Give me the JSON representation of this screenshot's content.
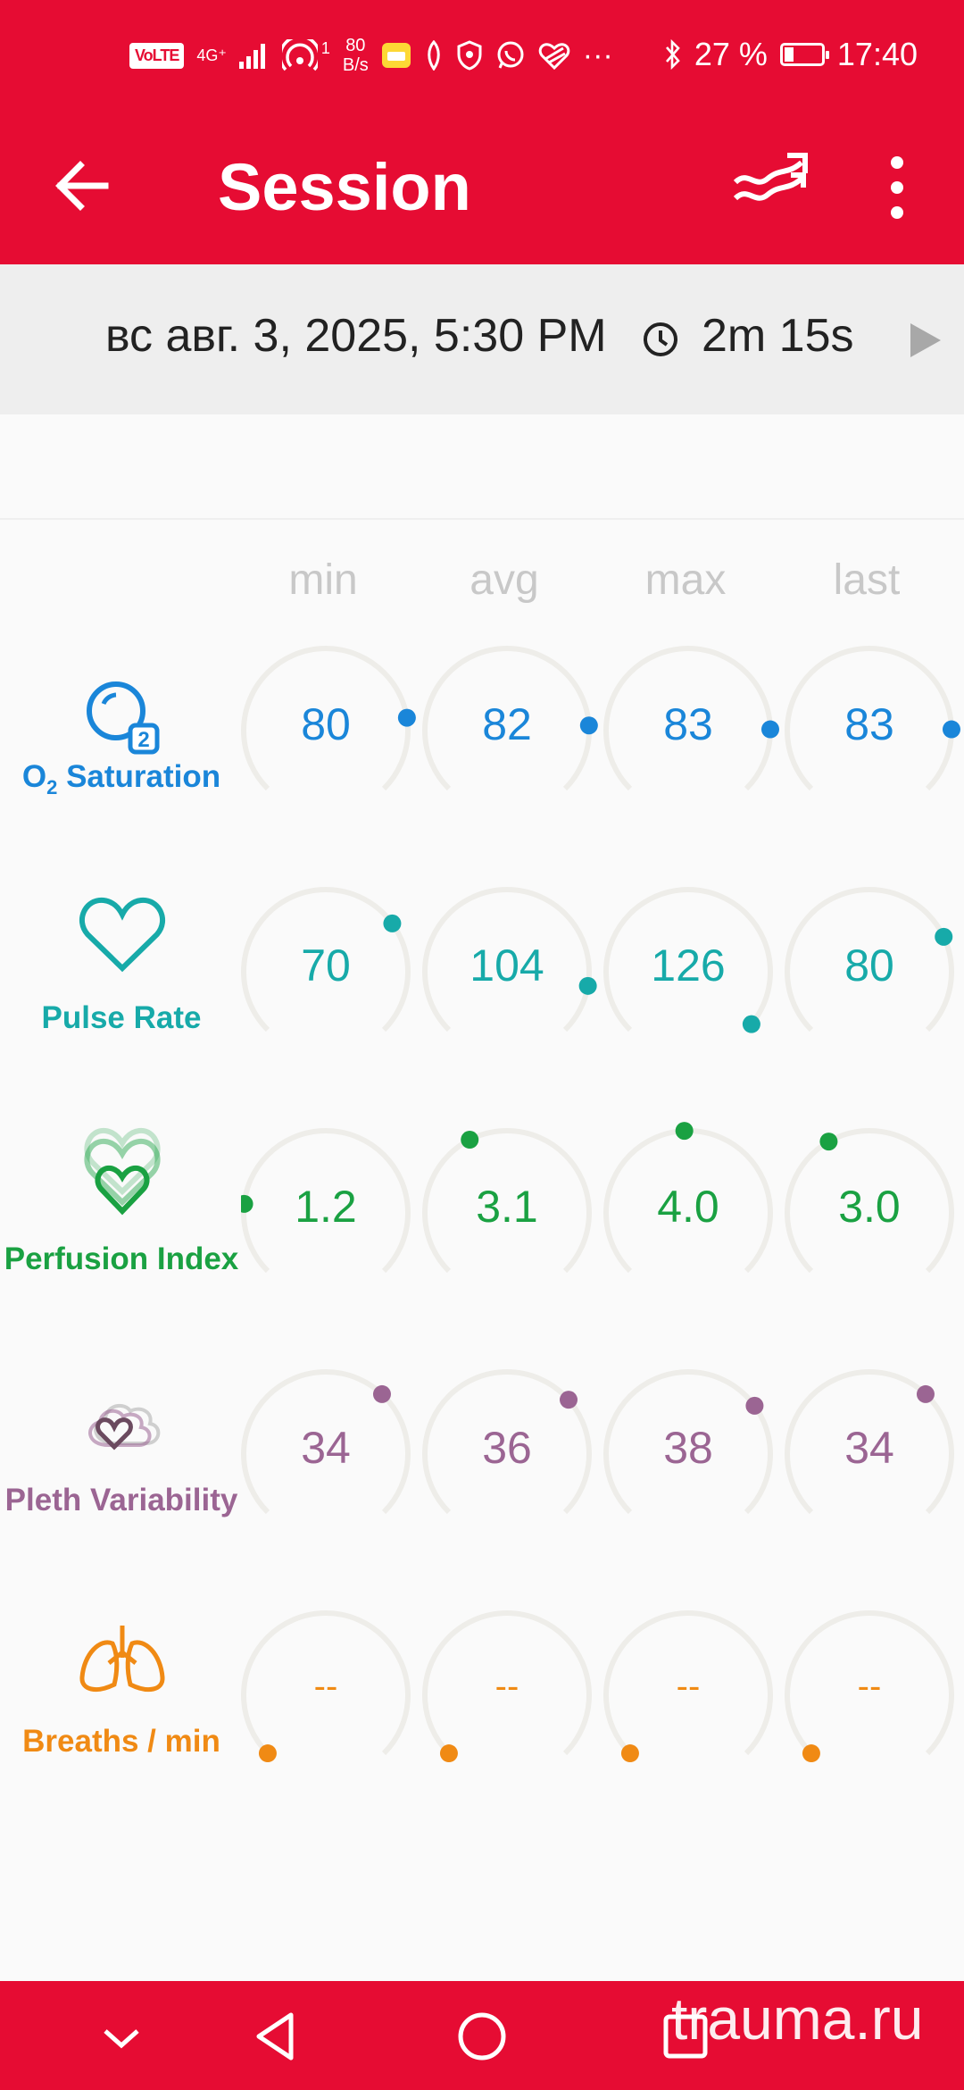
{
  "status_bar": {
    "volte": "VoLTE",
    "network": "4G⁺",
    "hotspot_count": "1",
    "speed_value": "80",
    "speed_unit": "B/s",
    "overflow": "···",
    "battery": "27 %",
    "time": "17:40"
  },
  "app_bar": {
    "title": "Session"
  },
  "session": {
    "date": "вс авг. 3, 2025, 5:30 PM",
    "duration": "2m 15s"
  },
  "columns": [
    "min",
    "avg",
    "max",
    "last"
  ],
  "metrics": [
    {
      "label_prefix": "O",
      "label_sub": "2",
      "label_suffix": " Saturation",
      "color": "#1a86d9",
      "icon": "o2-saturation-icon",
      "values": [
        "80",
        "82",
        "83",
        "83"
      ],
      "levels": [
        0.8,
        0.82,
        0.83,
        0.83
      ]
    },
    {
      "label": "Pulse Rate",
      "color": "#17aaa9",
      "icon": "heart-icon",
      "values": [
        "70",
        "104",
        "126",
        "80"
      ],
      "levels": [
        0.7,
        0.87,
        0.98,
        0.74
      ]
    },
    {
      "label": "Perfusion Index",
      "color": "#1aa142",
      "icon": "perfusion-icon",
      "values": [
        "1.2",
        "3.1",
        "4.0",
        "3.0"
      ],
      "levels": [
        0.19,
        0.4,
        0.49,
        0.39
      ]
    },
    {
      "label": "Pleth Variability",
      "color": "#9b6593",
      "icon": "pleth-variability-icon",
      "values": [
        "34",
        "36",
        "38",
        "34"
      ],
      "levels": [
        0.66,
        0.68,
        0.7,
        0.66
      ]
    },
    {
      "label": "Breaths / min",
      "color": "#f08a14",
      "icon": "lungs-icon",
      "values": [
        "--",
        "--",
        "--",
        "--"
      ],
      "levels": [
        0,
        0,
        0,
        0
      ]
    }
  ],
  "watermark": "trauma.ru",
  "colors": {
    "accent": "#e60c33",
    "header_bg": "#eeeeee",
    "track": "#eeede9"
  }
}
